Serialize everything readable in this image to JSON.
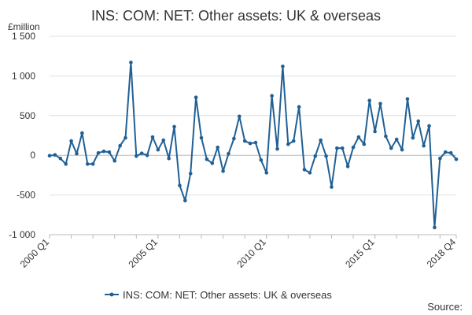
{
  "chart_data": {
    "type": "line",
    "title": "INS: COM: NET: Other assets: UK & overseas",
    "unit_label": "£million",
    "source_label": "Source:",
    "ylim": [
      -1000,
      1500
    ],
    "y_ticks": [
      1500,
      1000,
      500,
      0,
      -500,
      -1000
    ],
    "y_tick_labels": [
      "1 500",
      "1 000",
      "500",
      "0",
      "-500",
      "-1 000"
    ],
    "x_start": "2000 Q1",
    "x_end": "2018 Q4",
    "x_tick_labels": [
      {
        "label": "2000 Q1",
        "index": 0
      },
      {
        "label": "2005 Q1",
        "index": 20
      },
      {
        "label": "2010 Q1",
        "index": 40
      },
      {
        "label": "2015 Q1",
        "index": 60
      },
      {
        "label": "2018 Q4",
        "index": 75
      }
    ],
    "grid": true,
    "legend_position": "bottom",
    "colors": {
      "series": "#206095",
      "grid": "#e0e0e0",
      "axis": "#bbbbbb",
      "text": "#333333"
    },
    "series": [
      {
        "name": "INS: COM: NET: Other assets: UK & overseas",
        "values": [
          -5,
          5,
          -40,
          -110,
          180,
          20,
          280,
          -110,
          -110,
          30,
          50,
          40,
          -70,
          120,
          220,
          1170,
          -10,
          25,
          0,
          230,
          70,
          190,
          -40,
          360,
          -380,
          -570,
          -230,
          730,
          220,
          -50,
          -100,
          100,
          -200,
          20,
          210,
          490,
          180,
          150,
          160,
          -60,
          -220,
          750,
          80,
          1120,
          140,
          180,
          610,
          -180,
          -220,
          -10,
          190,
          -10,
          -400,
          90,
          90,
          -140,
          100,
          230,
          140,
          690,
          300,
          650,
          240,
          90,
          200,
          70,
          710,
          220,
          430,
          120,
          370,
          -910,
          -40,
          40,
          30,
          -50
        ]
      }
    ]
  }
}
